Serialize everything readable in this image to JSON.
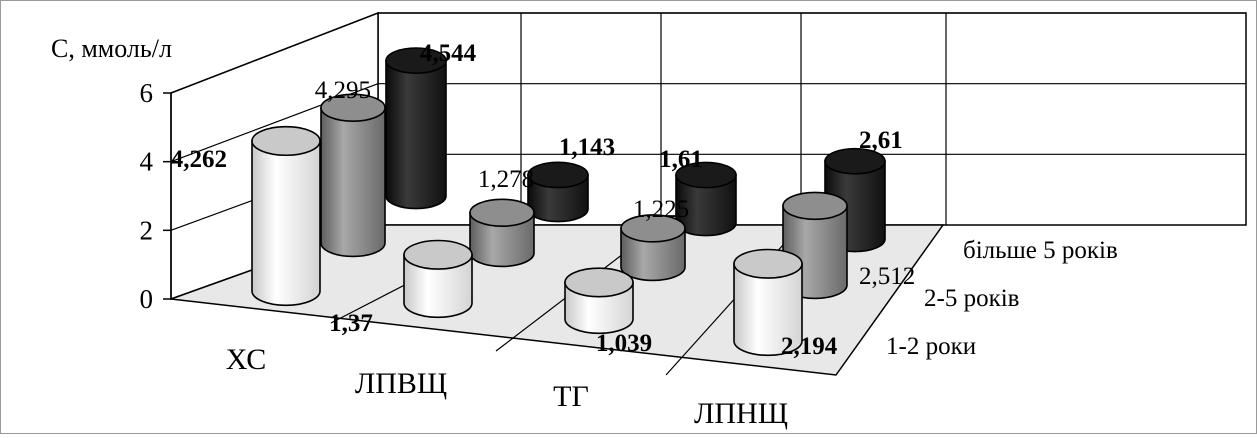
{
  "chart_data": {
    "type": "bar",
    "three_d": true,
    "ylabel": "С, ммоль/л",
    "ylim": [
      0,
      6
    ],
    "yticks": [
      "0",
      "2",
      "4",
      "6"
    ],
    "categories": [
      "ХС",
      "ЛПВЩ",
      "ТГ",
      "ЛПНЩ"
    ],
    "grid": true,
    "series": [
      {
        "name": "1-2 роки",
        "values": [
          4.262,
          1.37,
          1.039,
          2.194
        ],
        "labels": [
          "4,262",
          "1,37",
          "1,039",
          "2,194"
        ],
        "color": "#f2f2f2"
      },
      {
        "name": "2-5 років",
        "values": [
          4.295,
          1.278,
          1.225,
          2.512
        ],
        "labels": [
          "4,295",
          "1,278",
          "1,225",
          "2,512"
        ],
        "color": "#8c8c8c"
      },
      {
        "name": "більше 5 років",
        "values": [
          4.544,
          1.143,
          1.61,
          2.61
        ],
        "labels": [
          "4,544",
          "1,143",
          "1,61",
          "2,61"
        ],
        "color": "#262626"
      }
    ]
  }
}
